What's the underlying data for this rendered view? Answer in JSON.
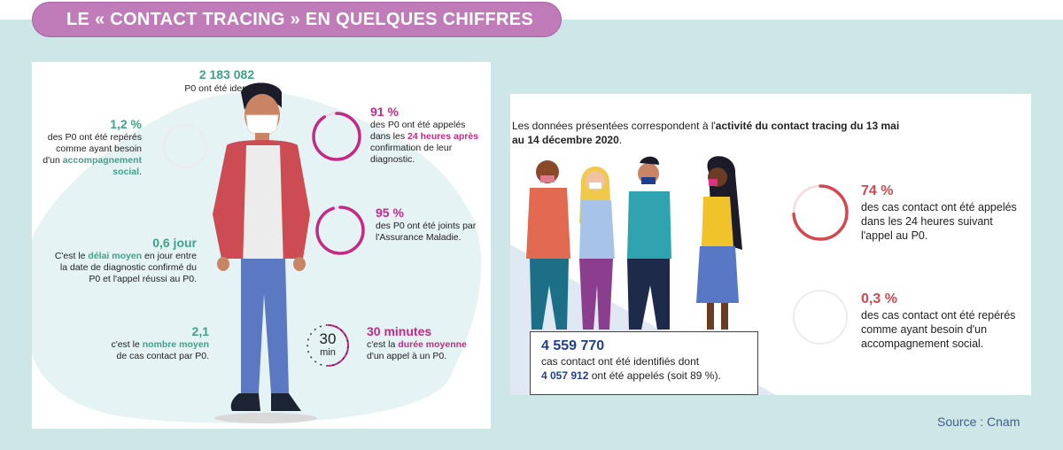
{
  "header": {
    "title": "LE « CONTACT TRACING » EN QUELQUES CHIFFRES"
  },
  "colors": {
    "band": "#cde7e7",
    "title_pill": "#c07bb9",
    "green": "#3fa28a",
    "pink": "#c42a84",
    "red": "#d3474f",
    "blue": "#1f3f8e"
  },
  "left_panel": {
    "p0_identified": {
      "value": "2 183 082",
      "text": "P0 ont été identifiés."
    },
    "accompaniment": {
      "value": "1,2 %",
      "line1": "des P0 ont été repérés",
      "line2": "comme ayant besoin",
      "line3_pre": "d'un ",
      "line3_hl": "accompagnement",
      "line4_hl": "social",
      "line4_post": ".",
      "fraction": 0.012
    },
    "called_24h": {
      "value": "91 %",
      "line1": "des P0 ont été appelés",
      "line2_pre": "dans les ",
      "line2_hl": "24 heures après",
      "line3": "confirmation de leur",
      "line4": "diagnostic.",
      "fraction": 0.91
    },
    "joined": {
      "value": "95 %",
      "line1": "des P0 ont été joints par",
      "line2": "l'Assurance Maladie.",
      "fraction": 0.95
    },
    "delay": {
      "value": "0,6 jour",
      "line1_pre": "C'est le ",
      "line1_hl": "délai moyen",
      "line1_post": " en jour entre",
      "line2": "la date de diagnostic confirmé du",
      "line3": "P0 et l'appel réussi au P0."
    },
    "average_contacts": {
      "value": "2,1",
      "line1_pre": "c'est le ",
      "line1_hl": "nombre moyen",
      "line2": "de cas contact par P0."
    },
    "duration": {
      "value": "30 minutes",
      "line1_pre": "c'est la ",
      "line1_hl": "durée moyenne",
      "line2": "d'un appel à un P0.",
      "clock_number": "30",
      "clock_unit": "min"
    }
  },
  "right_panel": {
    "intro_pre": "Les données présentées correspondent à l'",
    "intro_bold1": "activité du contact tracing du 13 mai",
    "intro_bold2": "au 14 décembre 2020",
    "intro_post": ".",
    "called_24h": {
      "value": "74 %",
      "line1": "des cas contact ont été appelés",
      "line2": "dans les 24 heures suivant",
      "line3": "l'appel au P0.",
      "fraction": 0.74
    },
    "accompaniment": {
      "value": "0,3 %",
      "line1": "des cas contact ont été repérés",
      "line2": "comme ayant besoin d'un",
      "line3": "accompagnement social.",
      "fraction": 0.003
    },
    "contacts_box": {
      "value": "4 559 770",
      "line1": "cas contact ont été identifiés dont",
      "line2_hl": "4 057 912",
      "line2_post": " ont été appelés (soit 89 %)."
    }
  },
  "footer": {
    "source": "Source : Cnam"
  }
}
